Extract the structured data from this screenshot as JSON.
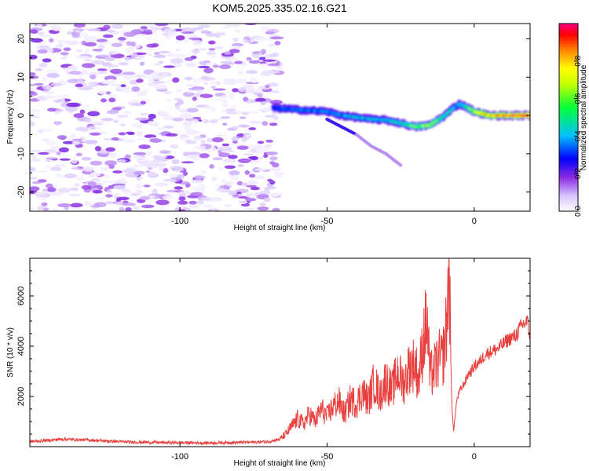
{
  "title": "KOM5.2025.335.02.16.G21",
  "chart_data": [
    {
      "type": "heatmap",
      "title": "KOM5.2025.335.02.16.G21",
      "xlabel": "Height of straight line (km)",
      "ylabel": "Frequency (Hz)",
      "xlim": [
        -151,
        19
      ],
      "ylim": [
        -25,
        24
      ],
      "x_ticks": [
        -100,
        -50,
        0
      ],
      "y_ticks": [
        20,
        10,
        0,
        -10,
        -20
      ],
      "colorbar": {
        "label": "Normalized spectral amplitude",
        "range": [
          0,
          1
        ],
        "ticks": [
          0.0,
          0.2,
          0.4,
          0.6,
          0.8
        ],
        "colormap": [
          "#ffffff",
          "#b58cff",
          "#7a00ff",
          "#0000ff",
          "#00ccff",
          "#00ff44",
          "#ffff00",
          "#ff8800",
          "#ff0000",
          "#ff0088"
        ]
      },
      "noise_region": {
        "x": [
          -151,
          -66
        ],
        "y": [
          -25,
          24
        ],
        "amplitude_range": [
          0.02,
          0.2
        ]
      },
      "ridge": {
        "x": [
          -68,
          -60,
          -50,
          -45,
          -40,
          -35,
          -30,
          -25,
          -20,
          -15,
          -10,
          -7,
          -5,
          -2,
          0,
          5,
          10,
          15,
          19
        ],
        "frequency": [
          2,
          1.5,
          1,
          0,
          -0.5,
          -1,
          -1.2,
          -2,
          -3,
          -2.5,
          0,
          2,
          3,
          2,
          1,
          0,
          0,
          0,
          0
        ],
        "amplitude": [
          0.3,
          0.35,
          0.35,
          0.4,
          0.45,
          0.4,
          0.45,
          0.5,
          0.6,
          0.65,
          0.5,
          0.4,
          0.45,
          0.55,
          0.7,
          0.85,
          0.9,
          0.95,
          1.0
        ]
      },
      "secondary_ridge": {
        "x": [
          -50,
          -45,
          -40,
          -35,
          -30,
          -25
        ],
        "frequency": [
          -1,
          -3,
          -5,
          -8,
          -10,
          -13
        ]
      }
    },
    {
      "type": "line",
      "xlabel": "Height of straight line (km)",
      "ylabel": "SNR (10 * v/v)",
      "xlim": [
        -151,
        19
      ],
      "ylim": [
        0,
        7500
      ],
      "x_ticks": [
        -100,
        -50,
        0
      ],
      "y_ticks": [
        2000,
        4000,
        6000
      ],
      "color": "#e8413f",
      "series": [
        {
          "x": [
            -151,
            -145,
            -140,
            -135,
            -130,
            -125,
            -120,
            -115,
            -110,
            -105,
            -100,
            -95,
            -90,
            -85,
            -80,
            -75,
            -70,
            -66,
            -64,
            -62,
            -60,
            -58,
            -56,
            -54,
            -52,
            -50,
            -48,
            -46,
            -44,
            -42,
            -40,
            -38,
            -36,
            -34,
            -32,
            -30,
            -28,
            -26,
            -24,
            -22,
            -20,
            -19,
            -18,
            -17,
            -16,
            -15,
            -14,
            -13,
            -12,
            -11,
            -10,
            -9,
            -8.5,
            -8,
            -7.5,
            -7,
            -6,
            -5,
            -4,
            -3,
            -2,
            -1,
            0,
            2,
            4,
            6,
            8,
            10,
            12,
            14,
            16,
            18,
            19
          ],
          "values": [
            200,
            250,
            300,
            280,
            260,
            220,
            200,
            180,
            170,
            160,
            160,
            150,
            150,
            160,
            170,
            180,
            200,
            300,
            500,
            800,
            1100,
            900,
            1300,
            1000,
            1500,
            1200,
            1600,
            1800,
            1300,
            1900,
            1700,
            2200,
            1800,
            2600,
            2000,
            2700,
            2200,
            3000,
            2500,
            3200,
            3300,
            2600,
            3500,
            4500,
            5000,
            2800,
            3000,
            3200,
            3500,
            3400,
            4000,
            5500,
            7500,
            3500,
            1500,
            600,
            1800,
            2200,
            2400,
            2600,
            2900,
            3000,
            3200,
            3400,
            3700,
            3800,
            3900,
            4100,
            4300,
            4400,
            4800,
            5000,
            4400
          ]
        }
      ]
    }
  ]
}
